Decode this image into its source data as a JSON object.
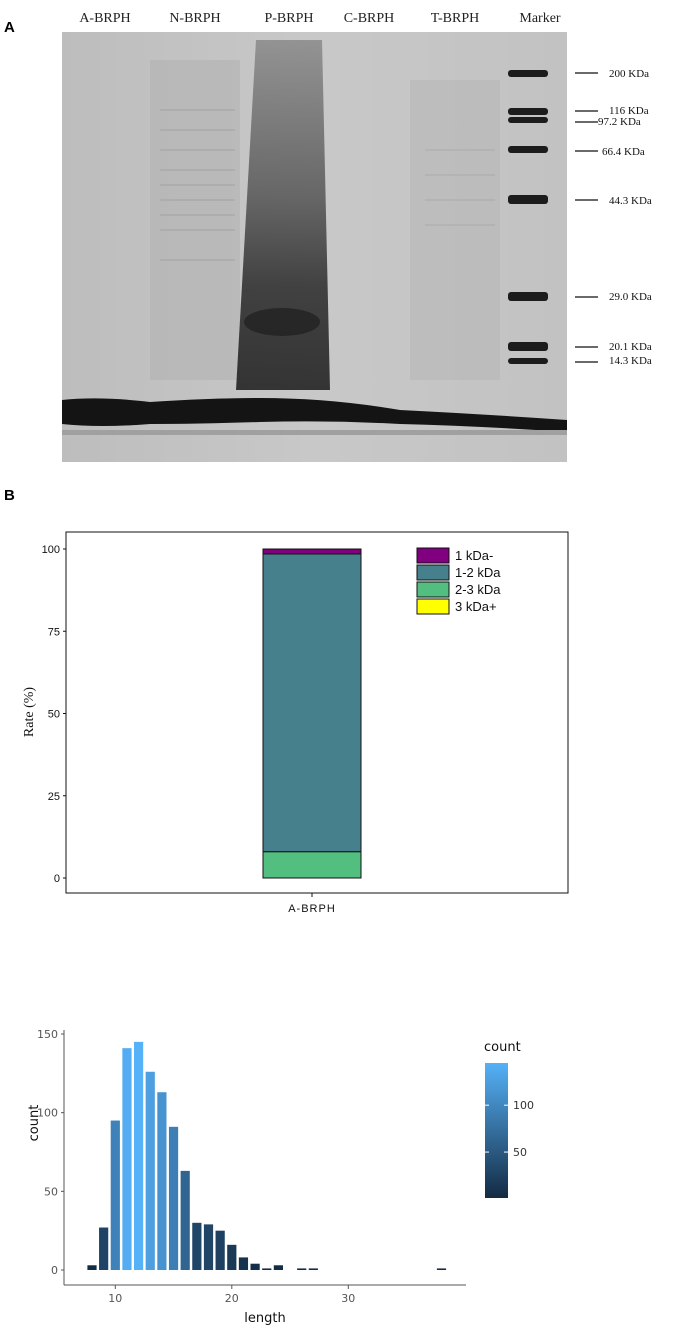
{
  "panel_a": {
    "label": "A",
    "lanes": [
      "A-BRPH",
      "N-BRPH",
      "P-BRPH",
      "C-BRPH",
      "T-BRPH",
      "Marker"
    ],
    "markers": [
      "200 KDa",
      "116 KDa",
      "97.2 KDa",
      "66.4 KDa",
      "44.3 KDa",
      "29.0 KDa",
      "20.1 KDa",
      "14.3 KDa"
    ]
  },
  "panel_b": {
    "label": "B"
  },
  "chart_data": [
    {
      "type": "bar",
      "stacked": true,
      "categories": [
        "A-BRPH"
      ],
      "series": [
        {
          "name": "1 kDa-",
          "values": [
            1.5
          ],
          "color": "#800080"
        },
        {
          "name": "1-2 kDa",
          "values": [
            90.5
          ],
          "color": "#46808C"
        },
        {
          "name": "2-3 kDa",
          "values": [
            8
          ],
          "color": "#52BE80"
        },
        {
          "name": "3 kDa+",
          "values": [
            0
          ],
          "color": "#FFFF00"
        }
      ],
      "ylabel": "Rate (%)",
      "ylim": [
        0,
        100
      ],
      "yticks": [
        0,
        25,
        50,
        75,
        100
      ],
      "legend": "top-right",
      "grid": false
    },
    {
      "type": "bar",
      "x": [
        8,
        9,
        10,
        11,
        12,
        13,
        14,
        15,
        16,
        17,
        18,
        19,
        20,
        21,
        22,
        23,
        24,
        26,
        27,
        38
      ],
      "values": [
        3,
        27,
        95,
        141,
        145,
        126,
        113,
        91,
        63,
        30,
        29,
        25,
        16,
        8,
        4,
        1,
        3,
        1,
        1,
        1
      ],
      "xlabel": "length",
      "ylabel": "count",
      "xticks": [
        10,
        20,
        30
      ],
      "yticks": [
        0,
        50,
        100,
        150
      ],
      "xlim": [
        7,
        39
      ],
      "ylim": [
        0,
        150
      ],
      "colorbar": {
        "title": "count",
        "ticks": [
          50,
          100
        ],
        "low_color": "#132B43",
        "high_color": "#56B1F7",
        "range": [
          1,
          145
        ]
      },
      "grid": false
    }
  ]
}
